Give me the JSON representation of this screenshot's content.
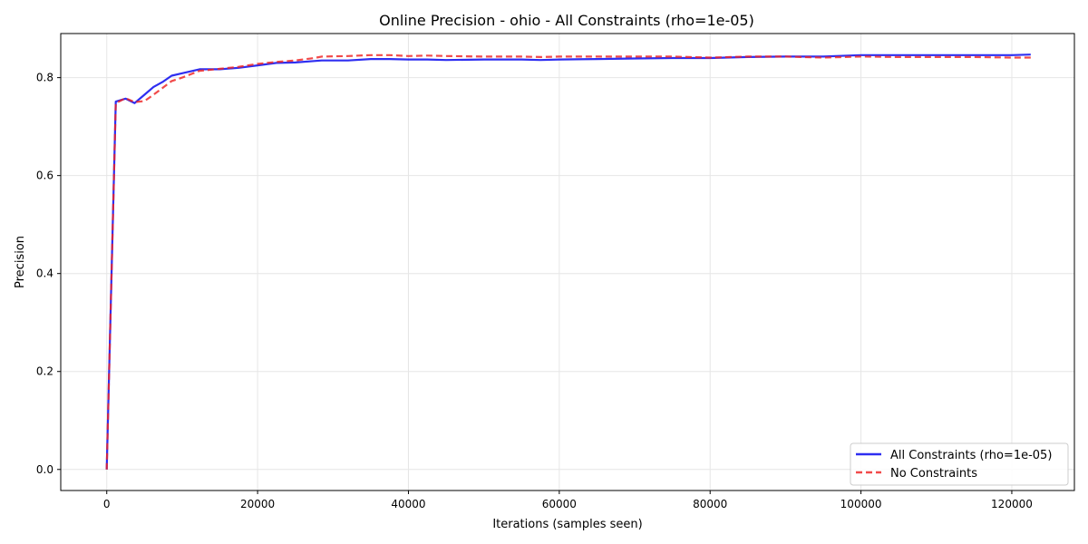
{
  "chart_data": {
    "type": "line",
    "title": "Online Precision - ohio - All Constraints (rho=1e-05)",
    "xlabel": "Iterations (samples seen)",
    "ylabel": "Precision",
    "xlim": [
      -6100,
      128300
    ],
    "ylim": [
      -0.043,
      0.89
    ],
    "xticks": [
      0,
      20000,
      40000,
      60000,
      80000,
      100000,
      120000
    ],
    "xtick_labels": [
      "0",
      "20000",
      "40000",
      "60000",
      "80000",
      "100000",
      "120000"
    ],
    "yticks": [
      0.0,
      0.2,
      0.4,
      0.6,
      0.8
    ],
    "ytick_labels": [
      "0.0",
      "0.2",
      "0.4",
      "0.6",
      "0.8"
    ],
    "grid": true,
    "legend_position": "lower-right",
    "series": [
      {
        "name": "All Constraints (rho=1e-05)",
        "color": "#0000ee",
        "style": "solid",
        "x": [
          0,
          1200,
          2500,
          3700,
          5000,
          6200,
          7500,
          8600,
          10000,
          12300,
          15000,
          17500,
          20000,
          22500,
          25000,
          27500,
          28500,
          32000,
          35000,
          37500,
          40000,
          42500,
          45000,
          50000,
          55000,
          57500,
          60000,
          65000,
          70000,
          75000,
          80000,
          85000,
          90000,
          95000,
          100000,
          105000,
          110000,
          115000,
          120000,
          122500
        ],
        "y": [
          0.0,
          0.751,
          0.757,
          0.748,
          0.765,
          0.781,
          0.792,
          0.804,
          0.809,
          0.817,
          0.817,
          0.82,
          0.825,
          0.83,
          0.831,
          0.834,
          0.835,
          0.835,
          0.838,
          0.838,
          0.837,
          0.837,
          0.836,
          0.837,
          0.837,
          0.836,
          0.837,
          0.838,
          0.839,
          0.84,
          0.84,
          0.842,
          0.843,
          0.843,
          0.846,
          0.846,
          0.846,
          0.846,
          0.846,
          0.847
        ]
      },
      {
        "name": "No Constraints",
        "color": "#ee2222",
        "style": "dashed",
        "x": [
          0,
          1200,
          2500,
          3700,
          5000,
          6200,
          7500,
          8600,
          10000,
          12300,
          15000,
          17500,
          20000,
          22500,
          25000,
          27500,
          28500,
          32000,
          35000,
          37500,
          40000,
          42500,
          45000,
          50000,
          55000,
          57500,
          60000,
          65000,
          70000,
          75000,
          80000,
          85000,
          90000,
          95000,
          100000,
          105000,
          110000,
          115000,
          120000,
          122500
        ],
        "y": [
          0.0,
          0.748,
          0.758,
          0.75,
          0.752,
          0.765,
          0.78,
          0.793,
          0.8,
          0.814,
          0.818,
          0.822,
          0.828,
          0.832,
          0.835,
          0.84,
          0.843,
          0.844,
          0.846,
          0.846,
          0.844,
          0.845,
          0.844,
          0.843,
          0.843,
          0.842,
          0.843,
          0.843,
          0.843,
          0.843,
          0.841,
          0.843,
          0.843,
          0.841,
          0.843,
          0.842,
          0.842,
          0.842,
          0.841,
          0.841
        ]
      }
    ]
  }
}
